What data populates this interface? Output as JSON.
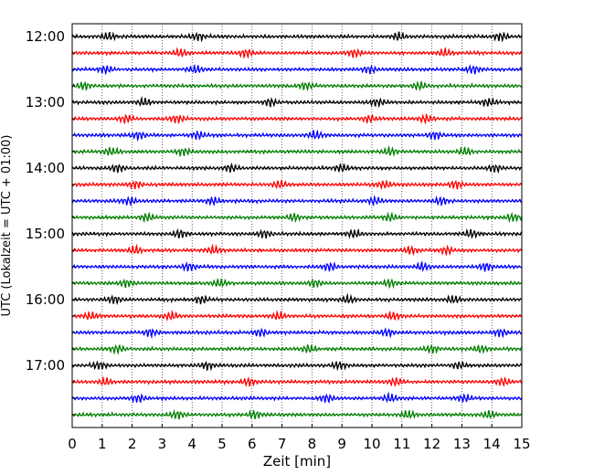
{
  "chart_data": {
    "type": "line",
    "xlabel": "Zeit  [min]",
    "ylabel": "UTC (Lokalzeit = UTC + 01:00)",
    "xlim": [
      0,
      15
    ],
    "x_ticks": [
      0,
      1,
      2,
      3,
      4,
      5,
      6,
      7,
      8,
      9,
      10,
      11,
      12,
      13,
      14,
      15
    ],
    "y_tick_labels": [
      "12:00",
      "13:00",
      "14:00",
      "15:00",
      "16:00",
      "17:00"
    ],
    "y_range_hours": [
      12.0,
      17.75
    ],
    "trace_interval_min": 15,
    "trace_count": 24,
    "x_grid": "dotted vertical lines at each minute",
    "colors": [
      "#000000",
      "#ff0000",
      "#0000ff",
      "#007f00"
    ],
    "event_bursts_min": [
      [
        1.2,
        4.2,
        10.9,
        14.3
      ],
      [
        3.6,
        5.8,
        9.4,
        12.4
      ],
      [
        1.1,
        4.1,
        9.9,
        13.4
      ],
      [
        0.4,
        7.8,
        11.6
      ],
      [
        2.4,
        6.6,
        10.2,
        13.9
      ],
      [
        1.8,
        3.5,
        9.9,
        11.8
      ],
      [
        2.2,
        4.2,
        8.1,
        12.1
      ],
      [
        1.3,
        3.7,
        10.6,
        13.1
      ],
      [
        1.5,
        5.3,
        9.0,
        14.1
      ],
      [
        2.1,
        6.9,
        10.4,
        12.8
      ],
      [
        1.9,
        4.7,
        10.1,
        12.3
      ],
      [
        2.5,
        7.4,
        10.6,
        14.7
      ],
      [
        3.6,
        6.4,
        9.4,
        13.3
      ],
      [
        2.1,
        4.7,
        11.3,
        12.5
      ],
      [
        3.9,
        8.6,
        11.7,
        13.8
      ],
      [
        1.8,
        4.9,
        8.1,
        10.6
      ],
      [
        1.4,
        4.3,
        9.2,
        12.7
      ],
      [
        0.6,
        3.3,
        6.9,
        10.7
      ],
      [
        2.6,
        6.3,
        10.5,
        14.3
      ],
      [
        1.5,
        7.9,
        12.0,
        13.6
      ],
      [
        0.9,
        4.5,
        8.9,
        12.9
      ],
      [
        1.1,
        5.9,
        10.8,
        14.4
      ],
      [
        2.2,
        8.5,
        10.6,
        13.1
      ],
      [
        3.5,
        6.1,
        11.2,
        13.9
      ]
    ]
  }
}
